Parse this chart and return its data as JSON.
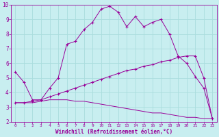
{
  "bg_color": "#c8eef0",
  "line_color": "#990099",
  "grid_color": "#aadddd",
  "xlabel": "Windchill (Refroidissement éolien,°C)",
  "xlim": [
    -0.5,
    23.5
  ],
  "ylim": [
    2,
    10
  ],
  "yticks": [
    2,
    3,
    4,
    5,
    6,
    7,
    8,
    9,
    10
  ],
  "xticks": [
    0,
    1,
    2,
    3,
    4,
    5,
    6,
    7,
    8,
    9,
    10,
    11,
    12,
    13,
    14,
    15,
    16,
    17,
    18,
    19,
    20,
    21,
    22,
    23
  ],
  "series1_x": [
    0,
    1,
    2,
    3,
    4,
    5,
    6,
    7,
    8,
    9,
    10,
    11,
    12,
    13,
    14,
    15,
    16,
    17,
    18,
    19,
    20,
    21,
    22,
    23
  ],
  "series1_y": [
    5.4,
    4.7,
    3.5,
    3.5,
    4.3,
    5.0,
    7.3,
    7.5,
    8.3,
    8.8,
    9.7,
    9.9,
    9.5,
    8.5,
    9.2,
    8.5,
    8.8,
    9.0,
    8.0,
    6.5,
    6.0,
    5.1,
    4.3,
    2.2
  ],
  "series2_x": [
    0,
    1,
    2,
    3,
    4,
    5,
    6,
    7,
    8,
    9,
    10,
    11,
    12,
    13,
    14,
    15,
    16,
    17,
    18,
    19,
    20,
    21,
    22,
    23
  ],
  "series2_y": [
    3.3,
    3.3,
    3.4,
    3.5,
    3.7,
    3.9,
    4.1,
    4.3,
    4.5,
    4.7,
    4.9,
    5.1,
    5.3,
    5.5,
    5.6,
    5.8,
    5.9,
    6.1,
    6.2,
    6.4,
    6.5,
    6.5,
    5.0,
    2.2
  ],
  "series3_x": [
    0,
    1,
    2,
    3,
    4,
    5,
    6,
    7,
    8,
    9,
    10,
    11,
    12,
    13,
    14,
    15,
    16,
    17,
    18,
    19,
    20,
    21,
    22,
    23
  ],
  "series3_y": [
    3.3,
    3.3,
    3.3,
    3.4,
    3.5,
    3.5,
    3.5,
    3.4,
    3.4,
    3.3,
    3.2,
    3.1,
    3.0,
    2.9,
    2.8,
    2.7,
    2.6,
    2.6,
    2.5,
    2.4,
    2.3,
    2.3,
    2.2,
    2.2
  ]
}
